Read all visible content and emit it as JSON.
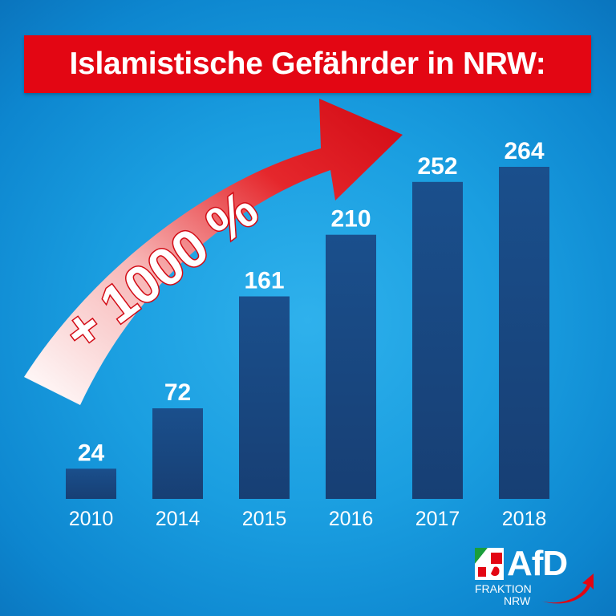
{
  "title": "Islamistische Gefährder in NRW:",
  "arrow": {
    "label": "+ 1000 %"
  },
  "chart_data": {
    "type": "bar",
    "title": "Islamistische Gefährder in NRW:",
    "categories": [
      "2010",
      "2014",
      "2015",
      "2016",
      "2017",
      "2018"
    ],
    "values": [
      24,
      72,
      161,
      210,
      252,
      264
    ],
    "xlabel": "",
    "ylabel": "",
    "ylim": [
      0,
      264
    ],
    "grid": false,
    "legend": "none"
  },
  "colors": {
    "bar": "#1d4a85",
    "title_bg": "#e30613",
    "arrow": "#e30613",
    "background": "#1a9ee0"
  },
  "logo": {
    "word": "AfD",
    "line1": "FRAKTION",
    "line2": "NRW"
  }
}
